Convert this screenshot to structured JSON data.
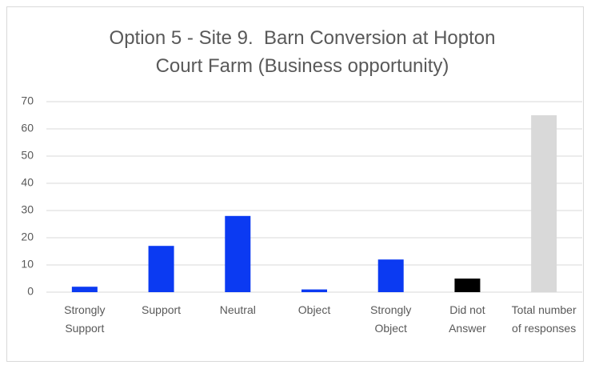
{
  "chart_data": {
    "type": "bar",
    "title": "Option 5 - Site 9.  Barn Conversion at Hopton Court Farm (Business opportunity)",
    "categories": [
      "Strongly Support",
      "Support",
      "Neutral",
      "Object",
      "Strongly Object",
      "Did not Answer",
      "Total number of responses"
    ],
    "values": [
      2,
      17,
      28,
      1,
      12,
      5,
      65
    ],
    "colors": [
      "#0b3af2",
      "#0b3af2",
      "#0b3af2",
      "#0b3af2",
      "#0b3af2",
      "#000000",
      "#d9d9d9"
    ],
    "ylim": [
      0,
      70
    ],
    "yticks": [
      0,
      10,
      20,
      30,
      40,
      50,
      60,
      70
    ],
    "grid": true
  }
}
